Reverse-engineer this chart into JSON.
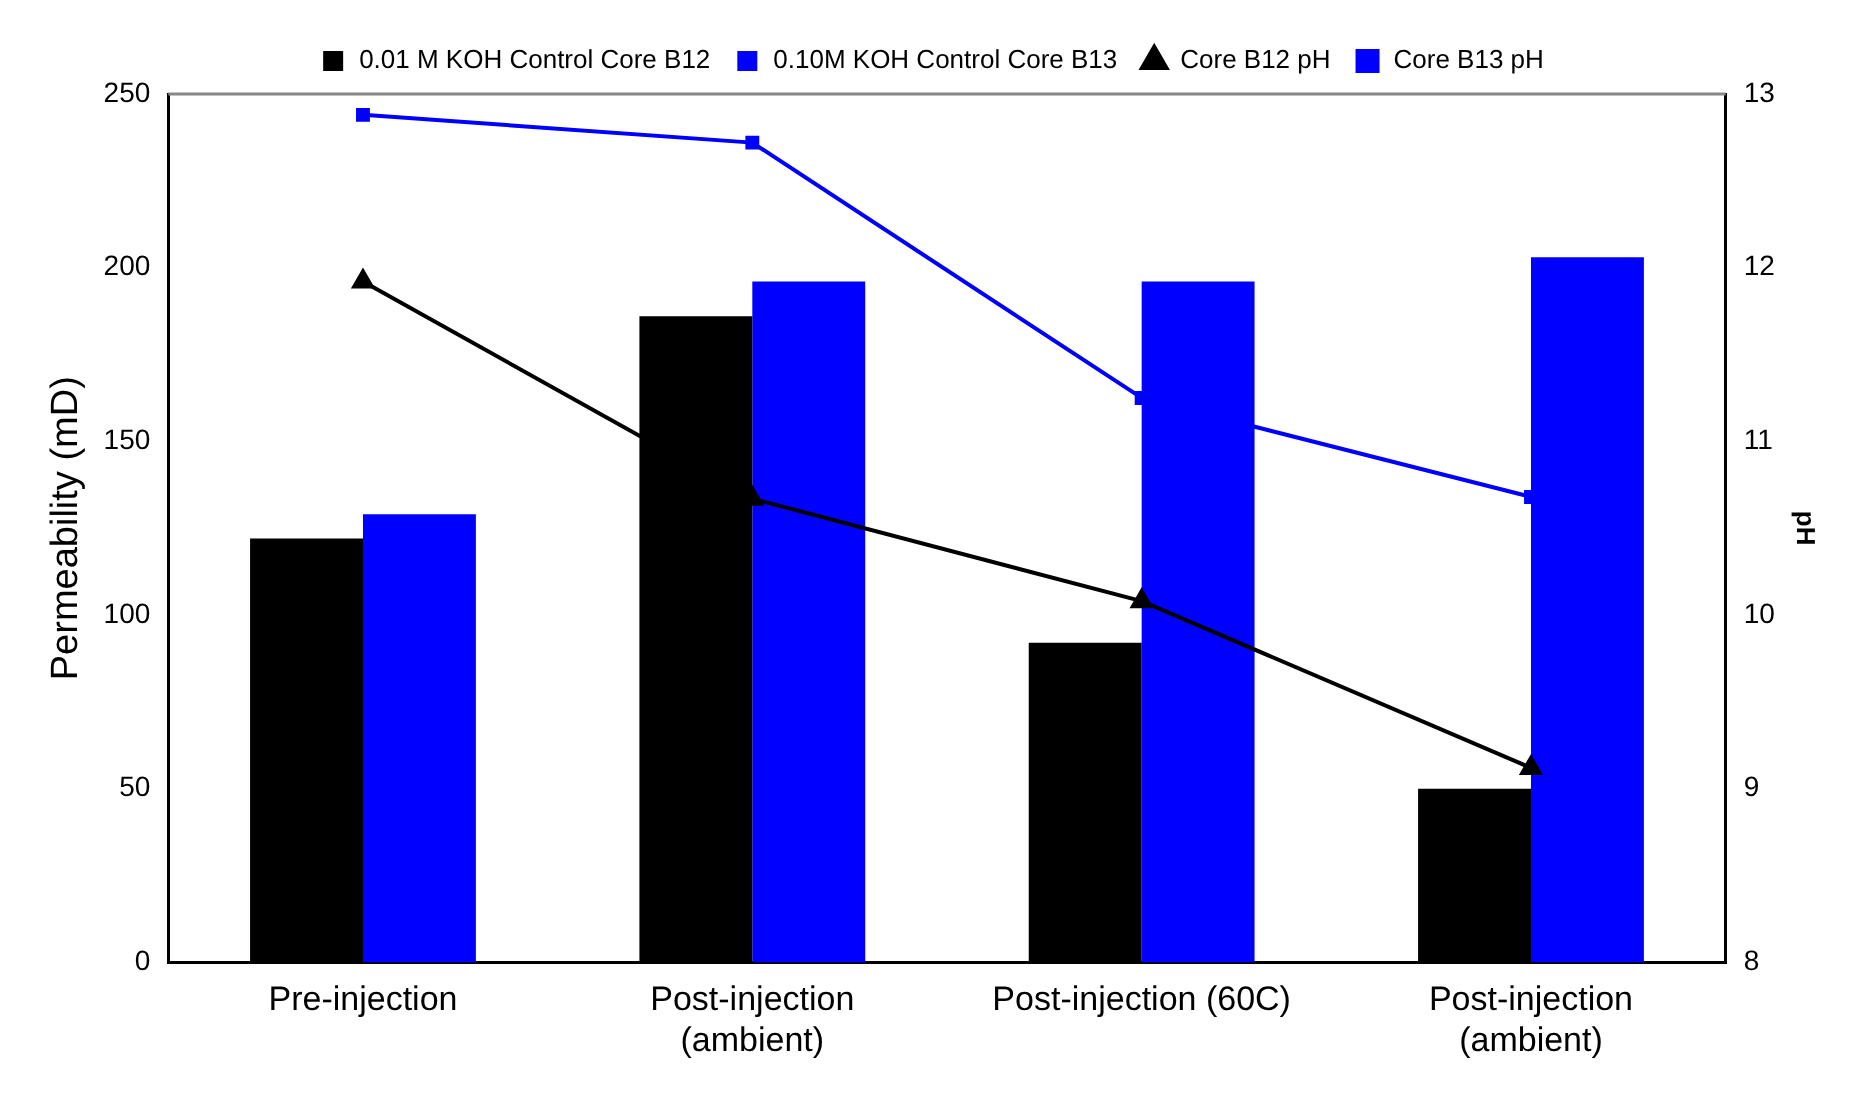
{
  "chart_data": {
    "type": "bar",
    "ylabel": "Permeability (mD)",
    "y2label": "pH",
    "categories": [
      "Pre-injection",
      "Post-injection (ambient)",
      "Post-injection (60C)",
      "Post-injection (ambient)"
    ],
    "series": [
      {
        "name": "0.01 M KOH Control Core B12",
        "color": "#000000",
        "values": [
          122,
          186,
          92,
          50
        ]
      },
      {
        "name": "0.10M KOH Control Core B13",
        "color": "#0000ff",
        "values": [
          129,
          196,
          196,
          203
        ]
      },
      {
        "name": "Core B12 pH",
        "type": "line",
        "axis": "y2",
        "marker": "triangle",
        "color": "#000000",
        "values": [
          11.92,
          10.67,
          10.08,
          9.12
        ]
      },
      {
        "name": "Core B13 pH",
        "type": "line",
        "axis": "y2",
        "marker": "square",
        "color": "#0000ff",
        "values": [
          12.88,
          12.72,
          11.25,
          10.68
        ]
      }
    ],
    "ylim": [
      0,
      250
    ],
    "yticks": [
      0,
      50,
      100,
      150,
      200,
      250
    ],
    "y2lim": [
      8,
      13
    ],
    "y2ticks": [
      8,
      9,
      10,
      11,
      12,
      13
    ],
    "grid": false,
    "legend": "top"
  }
}
